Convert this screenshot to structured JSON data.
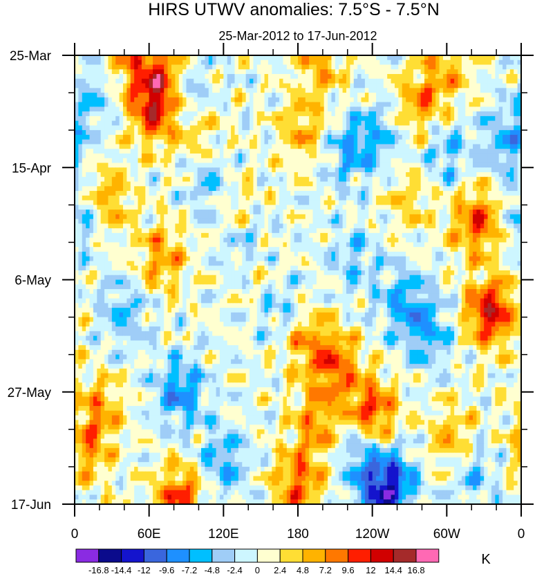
{
  "chart_data": {
    "type": "heatmap",
    "title": "HIRS UTWV anomalies: 7.5°S - 7.5°N",
    "subtitle": "25-Mar-2012 to 17-Jun-2012",
    "xlabel": "",
    "ylabel": "",
    "x_ticks": [
      "0",
      "60E",
      "120E",
      "180",
      "120W",
      "60W",
      "0"
    ],
    "y_ticks": [
      "25-Mar",
      "15-Apr",
      "6-May",
      "27-May",
      "17-Jun"
    ],
    "colorbar": {
      "unit": "K",
      "levels": [
        "-16.8",
        "-14.4",
        "-12",
        "-9.6",
        "-7.2",
        "-4.8",
        "-2.4",
        "0",
        "2.4",
        "4.8",
        "7.2",
        "9.6",
        "12",
        "14.4",
        "16.8"
      ],
      "colors": [
        "#8a2be2",
        "#0b0b8c",
        "#1414cd",
        "#3a66dd",
        "#1e90ff",
        "#00bfff",
        "#9fcdf7",
        "#cdf6ff",
        "#ffffd0",
        "#ffde34",
        "#ffb300",
        "#ff7800",
        "#ff1e00",
        "#d10000",
        "#a52a2a",
        "#ff69b4"
      ]
    },
    "anomaly_blobs": [
      {
        "lon": 65,
        "day": 10,
        "amp": 12
      },
      {
        "lon": 70,
        "day": 3,
        "amp": 8
      },
      {
        "lon": 45,
        "day": 1,
        "amp": 6
      },
      {
        "lon": 25,
        "day": 27,
        "amp": 7
      },
      {
        "lon": 70,
        "day": 38,
        "amp": 7
      },
      {
        "lon": 185,
        "day": 14,
        "amp": 6
      },
      {
        "lon": 200,
        "day": 1,
        "amp": 6
      },
      {
        "lon": 278,
        "day": 9,
        "amp": 7
      },
      {
        "lon": 325,
        "day": 31,
        "amp": 10
      },
      {
        "lon": 335,
        "day": 48,
        "amp": 13
      },
      {
        "lon": 210,
        "day": 58,
        "amp": 9
      },
      {
        "lon": 185,
        "day": 53,
        "amp": 6
      },
      {
        "lon": 240,
        "day": 67,
        "amp": 11
      },
      {
        "lon": 195,
        "day": 69,
        "amp": 7
      },
      {
        "lon": 85,
        "day": 83,
        "amp": 10
      },
      {
        "lon": 180,
        "day": 80,
        "amp": 9
      },
      {
        "lon": 10,
        "day": 74,
        "amp": 6
      },
      {
        "lon": 305,
        "day": 72,
        "amp": 6
      },
      {
        "lon": 130,
        "day": 28,
        "amp": 4
      },
      {
        "lon": 100,
        "day": 14,
        "amp": 5
      },
      {
        "lon": 148,
        "day": 40,
        "amp": 5
      },
      {
        "lon": 300,
        "day": 3,
        "amp": 5
      },
      {
        "lon": 20,
        "day": 66,
        "amp": 6
      },
      {
        "lon": 270,
        "day": 27,
        "amp": 4
      },
      {
        "lon": 90,
        "day": 8,
        "amp": -6
      },
      {
        "lon": 110,
        "day": 24,
        "amp": -5
      },
      {
        "lon": 5,
        "day": 30,
        "amp": -6
      },
      {
        "lon": 140,
        "day": 36,
        "amp": -6
      },
      {
        "lon": 220,
        "day": 18,
        "amp": -6
      },
      {
        "lon": 245,
        "day": 15,
        "amp": -5
      },
      {
        "lon": 300,
        "day": 18,
        "amp": -5
      },
      {
        "lon": 350,
        "day": 16,
        "amp": -6
      },
      {
        "lon": 85,
        "day": 63,
        "amp": -8
      },
      {
        "lon": 120,
        "day": 76,
        "amp": -6
      },
      {
        "lon": 230,
        "day": 74,
        "amp": -6
      },
      {
        "lon": 255,
        "day": 80,
        "amp": -10
      },
      {
        "lon": 245,
        "day": 83,
        "amp": -6
      },
      {
        "lon": 40,
        "day": 48,
        "amp": -5
      },
      {
        "lon": 265,
        "day": 46,
        "amp": -6
      },
      {
        "lon": 285,
        "day": 52,
        "amp": -6
      },
      {
        "lon": 320,
        "day": 78,
        "amp": -5
      },
      {
        "lon": 165,
        "day": 47,
        "amp": -5
      },
      {
        "lon": 225,
        "day": 38,
        "amp": -4
      },
      {
        "lon": 15,
        "day": 8,
        "amp": -4
      }
    ]
  }
}
